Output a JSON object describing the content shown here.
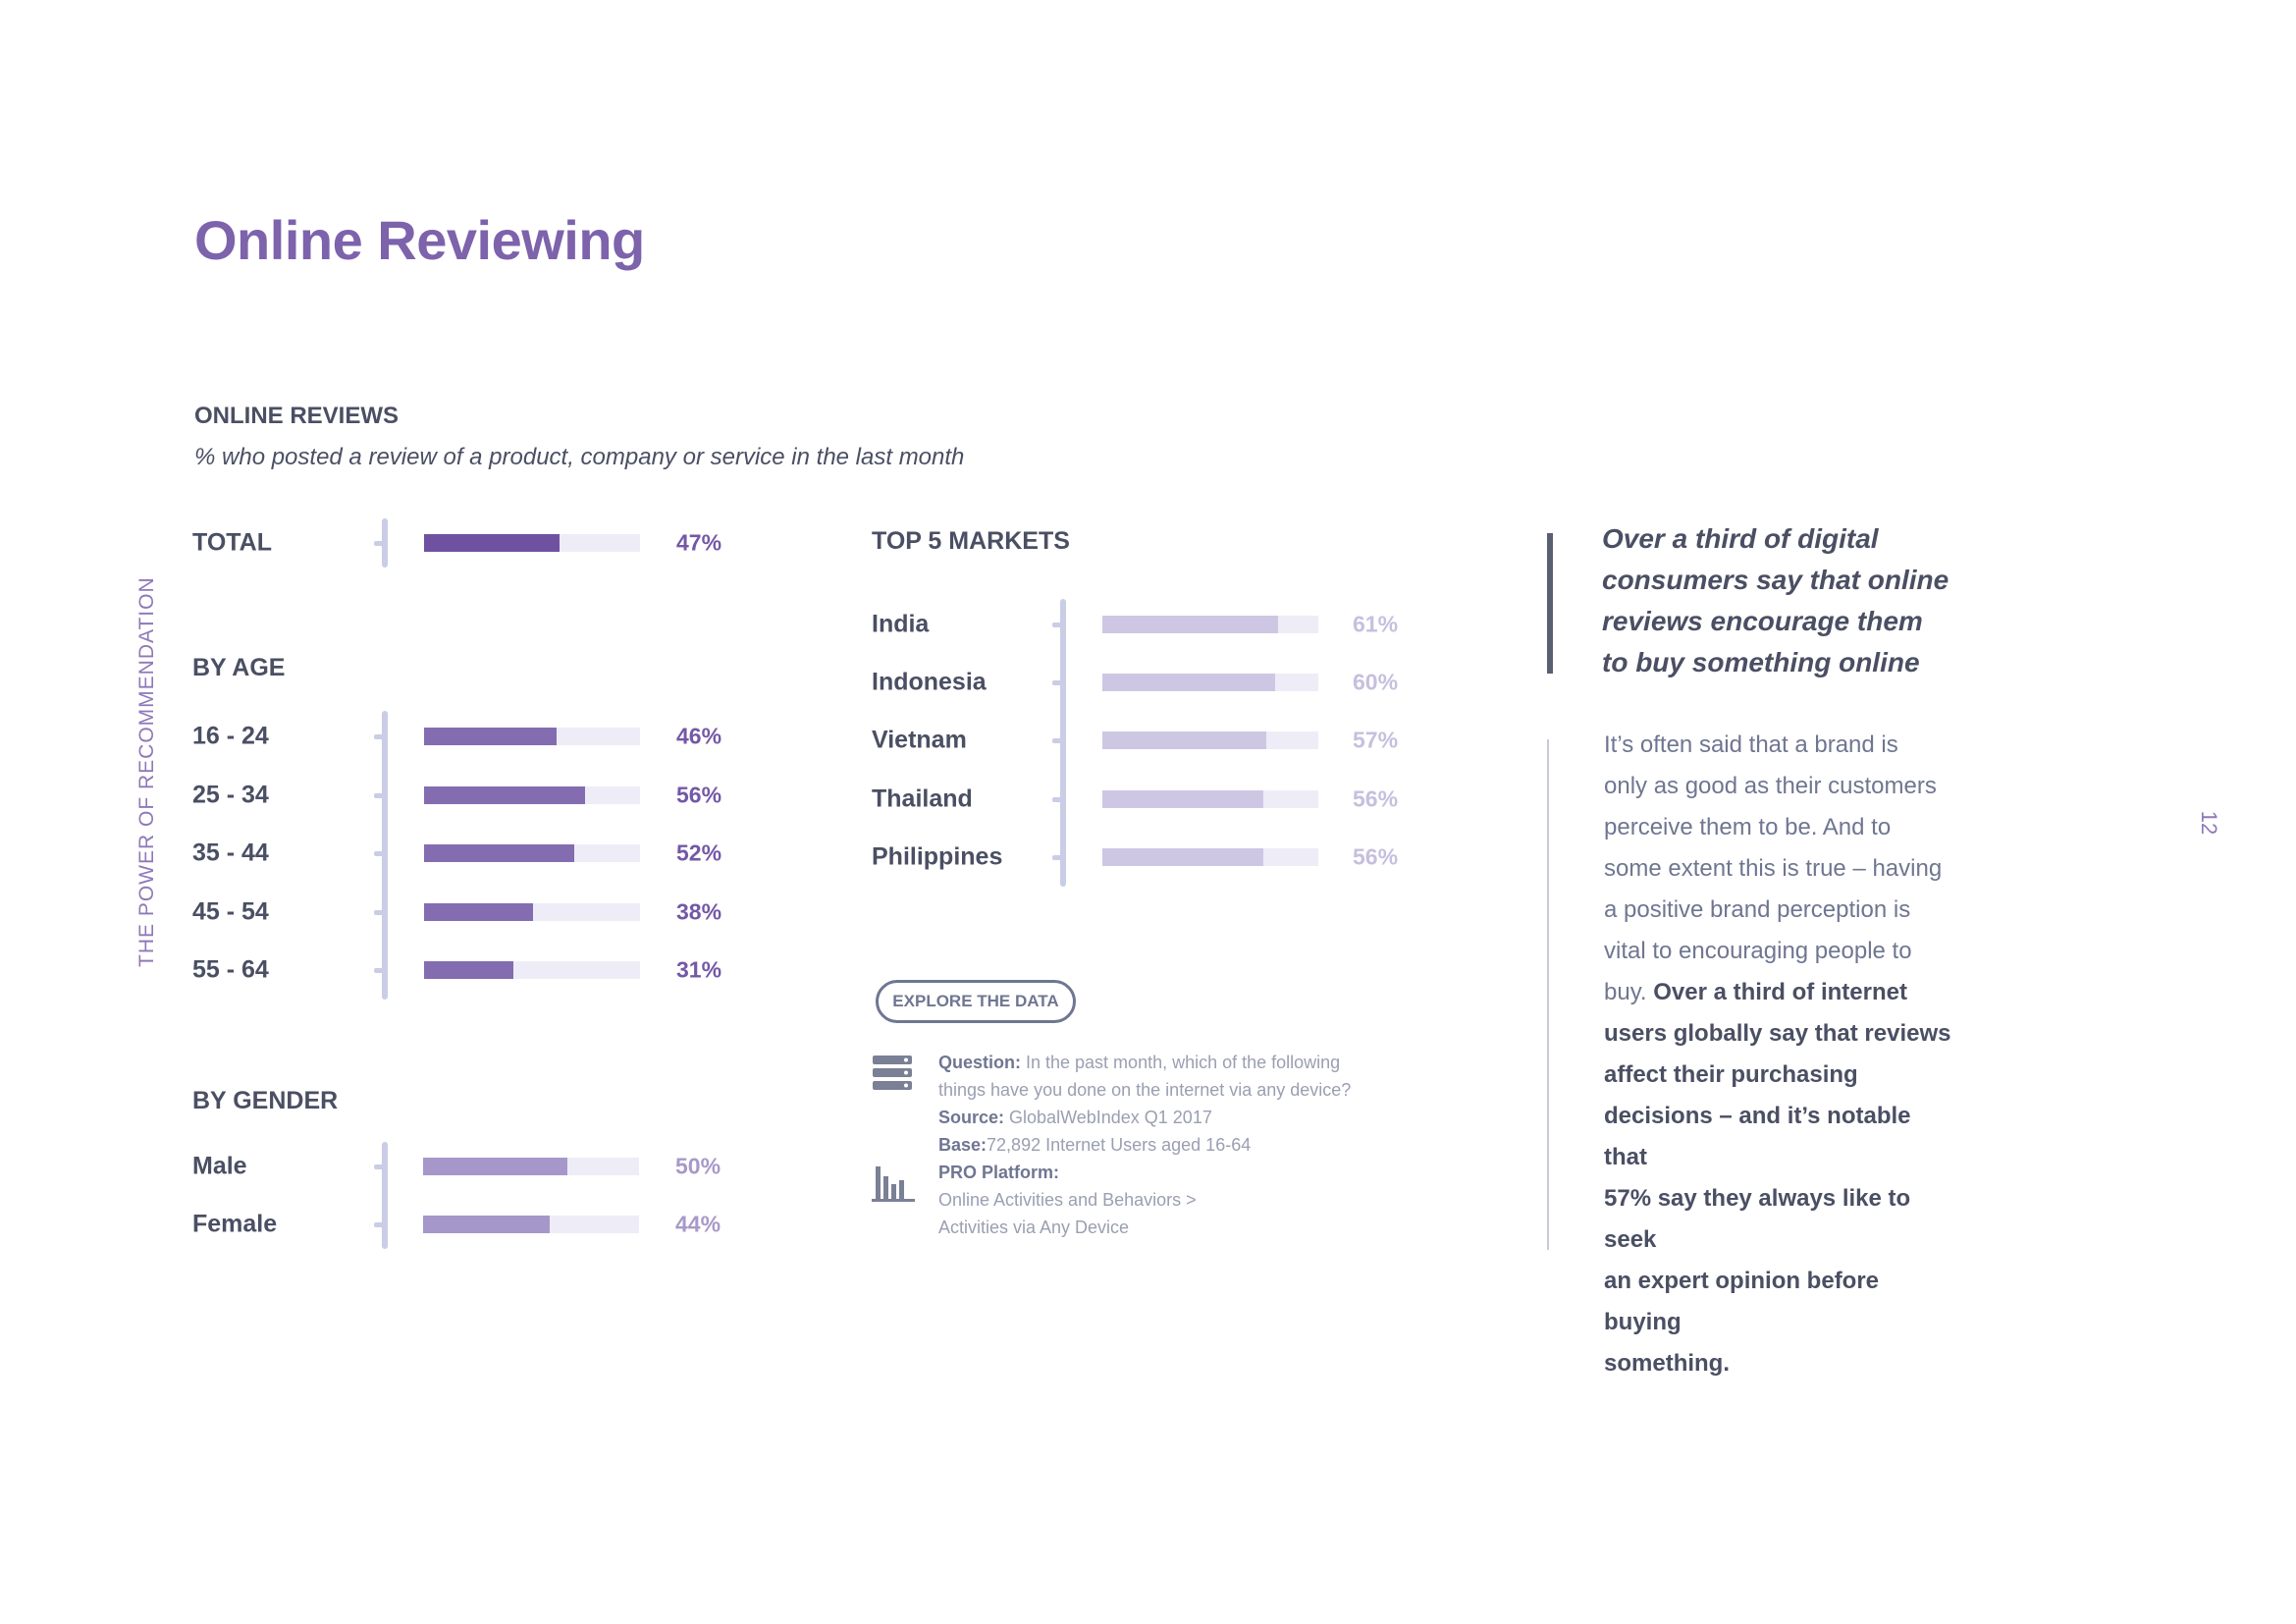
{
  "page": {
    "title": "Online Reviewing",
    "side_label": "THE POWER OF RECOMMENDATION",
    "page_number": "12"
  },
  "chart_data": {
    "type": "bar",
    "orientation": "horizontal",
    "title": "ONLINE REVIEWS",
    "subtitle": "% who posted a review of a product, company or service in the last month",
    "xlim": [
      0,
      75
    ],
    "unit": "%",
    "colors": {
      "total": "#6f51a1",
      "age": "#846cb1",
      "gender": "#a697ca",
      "markets": "#cdc7e4",
      "track": "#eeedf7",
      "axis": "#c9cde6",
      "value_dark": "#7358a7",
      "value_gender": "#a799c9",
      "value_markets": "#c6bfde"
    },
    "groups": [
      {
        "key": "total",
        "heading": "",
        "categories": [
          "TOTAL"
        ],
        "values": [
          47
        ],
        "labels": [
          "47%"
        ]
      },
      {
        "key": "age",
        "heading": "BY AGE",
        "categories": [
          "16 - 24",
          "25 - 34",
          "35 - 44",
          "45 - 54",
          "55 - 64"
        ],
        "values": [
          46,
          56,
          52,
          38,
          31
        ],
        "labels": [
          "46%",
          "56%",
          "52%",
          "38%",
          "31%"
        ]
      },
      {
        "key": "gender",
        "heading": "BY GENDER",
        "categories": [
          "Male",
          "Female"
        ],
        "values": [
          50,
          44
        ],
        "labels": [
          "50%",
          "44%"
        ]
      },
      {
        "key": "markets",
        "heading": "TOP 5 MARKETS",
        "categories": [
          "India",
          "Indonesia",
          "Vietnam",
          "Thailand",
          "Philippines"
        ],
        "values": [
          61,
          60,
          57,
          56,
          56
        ],
        "labels": [
          "61%",
          "60%",
          "57%",
          "56%",
          "56%"
        ]
      }
    ]
  },
  "explore_button": "EXPLORE THE DATA",
  "notes": {
    "question_label": "Question:",
    "question_line1": " In the past month, which of the following",
    "question_line2": "things have you done on the internet via any device?",
    "source_label": "Source:",
    "source_text": " GlobalWebIndex Q1 2017",
    "base_label": "Base:",
    "base_text": "72,892 Internet Users aged 16-64",
    "pro_label": "PRO Platform:",
    "pro_line1": "Online Activities and Behaviors >",
    "pro_line2": "Activities via Any Device",
    "icons": [
      "database-icon",
      "bar-chart-icon"
    ]
  },
  "quote": {
    "line1": "Over a third of digital",
    "line2": "consumers say that online",
    "line3": "reviews encourage them",
    "line4": "to buy something online"
  },
  "body": {
    "line1": "It’s often said that a brand is",
    "line2": "only as good as their customers",
    "line3": "perceive them to be. And to",
    "line4": "some extent this is true – having",
    "line5": "a positive brand perception is",
    "line6": "vital to encouraging people to",
    "line7_plain": "buy. ",
    "line7_strong": "Over a third of internet",
    "line8": "users globally say that reviews",
    "line9": "affect their purchasing",
    "line10": "decisions – and it’s notable that",
    "line11": "57% say they always like to seek",
    "line12": "an expert opinion before buying",
    "line13": "something."
  }
}
